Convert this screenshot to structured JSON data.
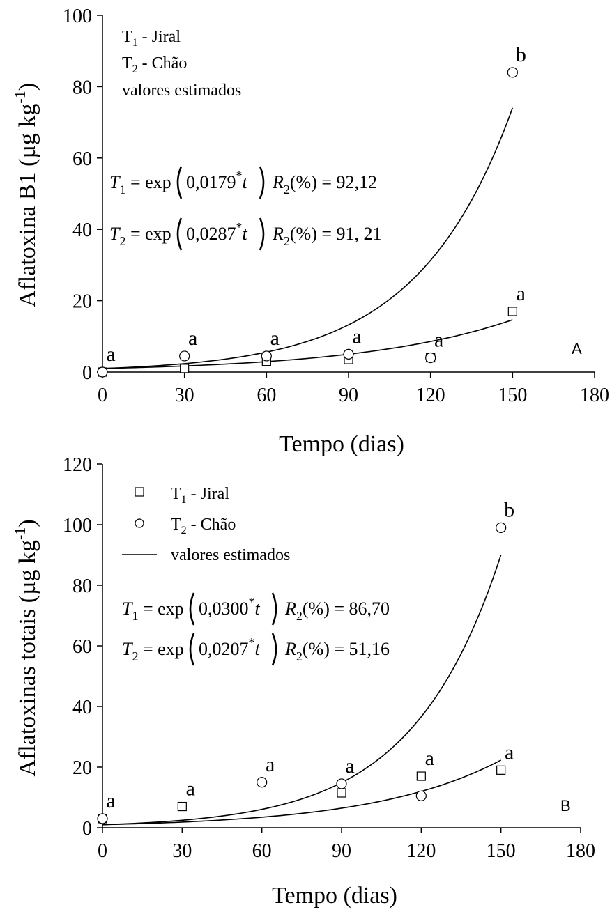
{
  "chart_data": [
    {
      "type": "scatter",
      "panel_label": "A",
      "xlabel": "Tempo (dias)",
      "ylabel": "Aflatoxina B1 (µg kg",
      "ylabel_sup": "-1",
      "ylabel_close": ")",
      "xlim": [
        0,
        180
      ],
      "ylim": [
        0,
        100
      ],
      "xticks": [
        "0",
        "30",
        "60",
        "90",
        "120",
        "150",
        "180"
      ],
      "yticks": [
        "0",
        "20",
        "40",
        "60",
        "80",
        "100"
      ],
      "legend": [
        {
          "sym": "T",
          "sub": "1",
          "text": " - Jiral"
        },
        {
          "sym": "T",
          "sub": "2",
          "text": " - Chão"
        },
        {
          "text": "valores estimados"
        }
      ],
      "equations": [
        {
          "lhs": "T",
          "sub": "1",
          "mid": " = exp",
          "coef": "0,0179",
          "star": "*",
          "var": "t",
          "r": "R",
          "rsub": "2",
          "rtext": "(%) = 92,12"
        },
        {
          "lhs": "T",
          "sub": "2",
          "mid": " = exp",
          "coef": "0,0287",
          "star": "*",
          "var": "t",
          "r": "R",
          "rsub": "2",
          "rtext": "(%) = 91, 21"
        }
      ],
      "series": [
        {
          "marker": "square",
          "x": [
            0,
            30,
            60,
            90,
            120,
            150
          ],
          "y": [
            0,
            1,
            3,
            3.5,
            4,
            17
          ]
        },
        {
          "marker": "circle",
          "x": [
            0,
            30,
            60,
            90,
            120,
            150
          ],
          "y": [
            0,
            4.5,
            4.5,
            5,
            4,
            84
          ]
        }
      ],
      "curves": [
        {
          "a": 1,
          "b": 0.0179,
          "x": [
            0,
            150
          ]
        },
        {
          "a": 1,
          "b": 0.0287,
          "x": [
            0,
            150
          ]
        }
      ],
      "annotations": [
        {
          "x": 0,
          "y": 0,
          "text": "a"
        },
        {
          "x": 30,
          "y": 4.5,
          "text": "a"
        },
        {
          "x": 60,
          "y": 4.5,
          "text": "a"
        },
        {
          "x": 90,
          "y": 5,
          "text": "a"
        },
        {
          "x": 120,
          "y": 4,
          "text": "a"
        },
        {
          "x": 150,
          "y": 17,
          "text": "a"
        },
        {
          "x": 150,
          "y": 84,
          "text": "b"
        }
      ]
    },
    {
      "type": "scatter",
      "panel_label": "B",
      "xlabel": "Tempo (dias)",
      "ylabel": "Aflatoxinas totais (µg kg",
      "ylabel_sup": "-1",
      "ylabel_close": ")",
      "xlim": [
        0,
        180
      ],
      "ylim": [
        0,
        120
      ],
      "xticks": [
        "0",
        "30",
        "60",
        "90",
        "120",
        "150",
        "180"
      ],
      "yticks": [
        "0",
        "20",
        "40",
        "60",
        "80",
        "100",
        "120"
      ],
      "legend": [
        {
          "marker": "square",
          "sym": "T",
          "sub": "1",
          "text": " - Jiral"
        },
        {
          "marker": "circle",
          "sym": "T",
          "sub": "2",
          "text": " - Chão"
        },
        {
          "marker": "line",
          "text": "valores estimados"
        }
      ],
      "equations": [
        {
          "lhs": "T",
          "sub": "1",
          "mid": " = exp",
          "coef": "0,0300",
          "star": "*",
          "var": "t",
          "r": "R",
          "rsub": "2",
          "rtext": "(%) = 86,70"
        },
        {
          "lhs": "T",
          "sub": "2",
          "mid": " = exp",
          "coef": "0,0207",
          "star": "*",
          "var": "t",
          "r": "R",
          "rsub": "2",
          "rtext": "(%) = 51,16"
        }
      ],
      "series": [
        {
          "marker": "square",
          "x": [
            0,
            30,
            90,
            120,
            150
          ],
          "y": [
            3,
            7,
            11.5,
            17,
            19
          ]
        },
        {
          "marker": "circle",
          "x": [
            0,
            60,
            90,
            120,
            150
          ],
          "y": [
            3,
            15,
            14.5,
            10.5,
            99
          ]
        }
      ],
      "curves": [
        {
          "a": 1,
          "b": 0.03,
          "x": [
            0,
            150
          ]
        },
        {
          "a": 1,
          "b": 0.0207,
          "x": [
            0,
            150
          ]
        }
      ],
      "annotations": [
        {
          "x": 0,
          "y": 3,
          "text": "a"
        },
        {
          "x": 30,
          "y": 7,
          "text": "a"
        },
        {
          "x": 60,
          "y": 15,
          "text": "a"
        },
        {
          "x": 90,
          "y": 14.5,
          "text": "a"
        },
        {
          "x": 120,
          "y": 17,
          "text": "a"
        },
        {
          "x": 150,
          "y": 19,
          "text": "a"
        },
        {
          "x": 150,
          "y": 99,
          "text": "b"
        }
      ]
    }
  ]
}
